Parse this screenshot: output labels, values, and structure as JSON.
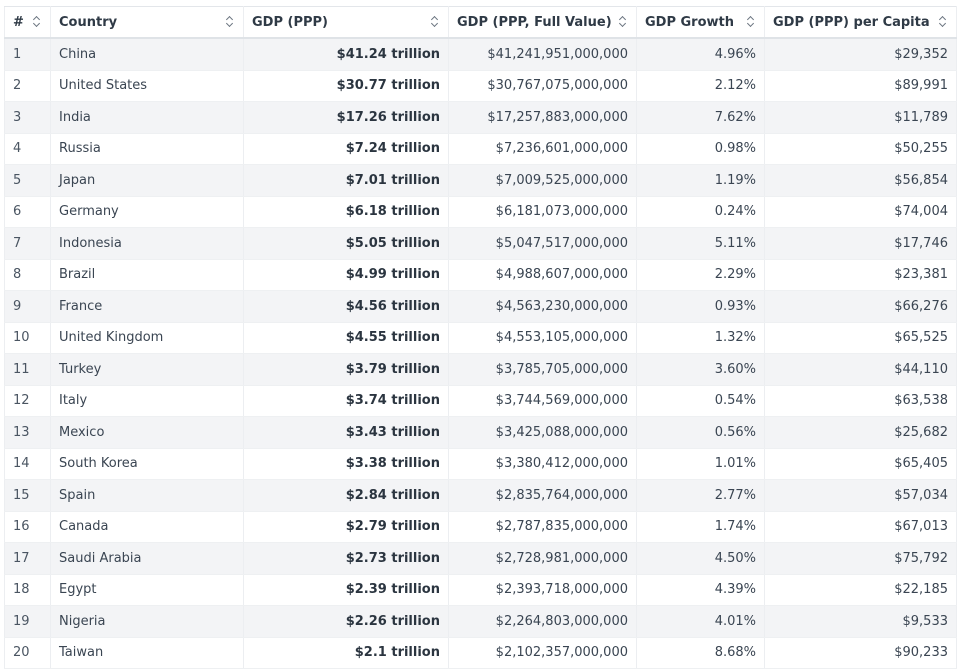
{
  "table": {
    "headers": {
      "rank": "#",
      "country": "Country",
      "gdp": "GDP (PPP)",
      "full": "GDP (PPP, Full Value)",
      "growth": "GDP Growth",
      "capita": "GDP (PPP) per Capita"
    },
    "rows": [
      {
        "rank": "1",
        "country": "China",
        "gdp": "$41.24 trillion",
        "full": "$41,241,951,000,000",
        "growth": "4.96%",
        "capita": "$29,352"
      },
      {
        "rank": "2",
        "country": "United States",
        "gdp": "$30.77 trillion",
        "full": "$30,767,075,000,000",
        "growth": "2.12%",
        "capita": "$89,991"
      },
      {
        "rank": "3",
        "country": "India",
        "gdp": "$17.26 trillion",
        "full": "$17,257,883,000,000",
        "growth": "7.62%",
        "capita": "$11,789"
      },
      {
        "rank": "4",
        "country": "Russia",
        "gdp": "$7.24 trillion",
        "full": "$7,236,601,000,000",
        "growth": "0.98%",
        "capita": "$50,255"
      },
      {
        "rank": "5",
        "country": "Japan",
        "gdp": "$7.01 trillion",
        "full": "$7,009,525,000,000",
        "growth": "1.19%",
        "capita": "$56,854"
      },
      {
        "rank": "6",
        "country": "Germany",
        "gdp": "$6.18 trillion",
        "full": "$6,181,073,000,000",
        "growth": "0.24%",
        "capita": "$74,004"
      },
      {
        "rank": "7",
        "country": "Indonesia",
        "gdp": "$5.05 trillion",
        "full": "$5,047,517,000,000",
        "growth": "5.11%",
        "capita": "$17,746"
      },
      {
        "rank": "8",
        "country": "Brazil",
        "gdp": "$4.99 trillion",
        "full": "$4,988,607,000,000",
        "growth": "2.29%",
        "capita": "$23,381"
      },
      {
        "rank": "9",
        "country": "France",
        "gdp": "$4.56 trillion",
        "full": "$4,563,230,000,000",
        "growth": "0.93%",
        "capita": "$66,276"
      },
      {
        "rank": "10",
        "country": "United Kingdom",
        "gdp": "$4.55 trillion",
        "full": "$4,553,105,000,000",
        "growth": "1.32%",
        "capita": "$65,525"
      },
      {
        "rank": "11",
        "country": "Turkey",
        "gdp": "$3.79 trillion",
        "full": "$3,785,705,000,000",
        "growth": "3.60%",
        "capita": "$44,110"
      },
      {
        "rank": "12",
        "country": "Italy",
        "gdp": "$3.74 trillion",
        "full": "$3,744,569,000,000",
        "growth": "0.54%",
        "capita": "$63,538"
      },
      {
        "rank": "13",
        "country": "Mexico",
        "gdp": "$3.43 trillion",
        "full": "$3,425,088,000,000",
        "growth": "0.56%",
        "capita": "$25,682"
      },
      {
        "rank": "14",
        "country": "South Korea",
        "gdp": "$3.38 trillion",
        "full": "$3,380,412,000,000",
        "growth": "1.01%",
        "capita": "$65,405"
      },
      {
        "rank": "15",
        "country": "Spain",
        "gdp": "$2.84 trillion",
        "full": "$2,835,764,000,000",
        "growth": "2.77%",
        "capita": "$57,034"
      },
      {
        "rank": "16",
        "country": "Canada",
        "gdp": "$2.79 trillion",
        "full": "$2,787,835,000,000",
        "growth": "1.74%",
        "capita": "$67,013"
      },
      {
        "rank": "17",
        "country": "Saudi Arabia",
        "gdp": "$2.73 trillion",
        "full": "$2,728,981,000,000",
        "growth": "4.50%",
        "capita": "$75,792"
      },
      {
        "rank": "18",
        "country": "Egypt",
        "gdp": "$2.39 trillion",
        "full": "$2,393,718,000,000",
        "growth": "4.39%",
        "capita": "$22,185"
      },
      {
        "rank": "19",
        "country": "Nigeria",
        "gdp": "$2.26 trillion",
        "full": "$2,264,803,000,000",
        "growth": "4.01%",
        "capita": "$9,533"
      },
      {
        "rank": "20",
        "country": "Taiwan",
        "gdp": "$2.1 trillion",
        "full": "$2,102,357,000,000",
        "growth": "8.68%",
        "capita": "$90,233"
      }
    ]
  },
  "icons": {
    "sort": "sort-icon"
  }
}
